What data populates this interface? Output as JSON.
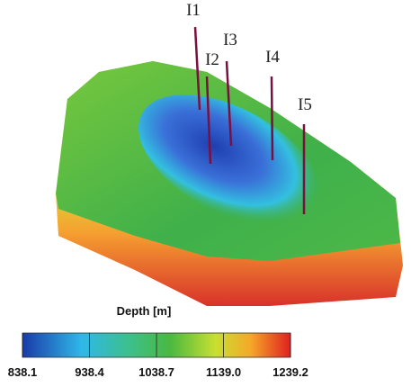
{
  "wells": [
    "I1",
    "I2",
    "I3",
    "I4",
    "I5"
  ],
  "colorbar": {
    "title": "Depth [m]",
    "ticks": [
      838.1,
      938.4,
      1038.7,
      {
        "value": 1139,
        "label": "1139.0"
      },
      1239.2
    ]
  }
}
